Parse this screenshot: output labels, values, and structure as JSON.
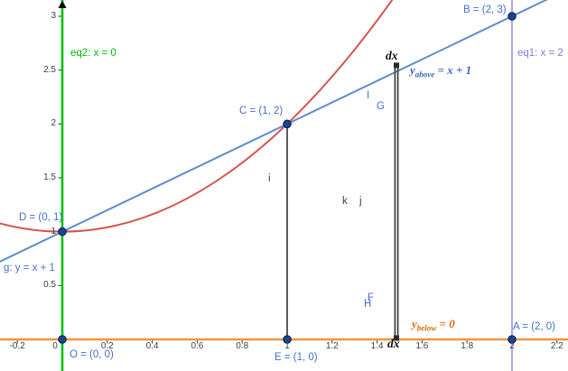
{
  "chart_data": {
    "type": "line",
    "title": "",
    "xlabel": "",
    "ylabel": "",
    "grid": false,
    "x_axis": {
      "range": [
        -0.28,
        2.25
      ],
      "ticks": [
        -0.2,
        0,
        0.2,
        0.4,
        0.6,
        0.8,
        1,
        1.2,
        1.4,
        1.6,
        1.8,
        2,
        2.2
      ]
    },
    "y_axis": {
      "range": [
        -0.29,
        3.15
      ],
      "ticks": [
        0.5,
        1,
        1.5,
        2,
        2.5,
        3
      ]
    },
    "series": [
      {
        "id": "g",
        "name": "g: y = x + 1",
        "kind": "linear",
        "m": 1,
        "b": 1,
        "color": "#5f8dc9",
        "width": 2
      },
      {
        "id": "f",
        "name": "parabola (unlabeled)",
        "kind": "parabola",
        "a": 1,
        "bq": 0,
        "c": 1,
        "color": "#d2564f",
        "width": 2
      },
      {
        "id": "eq2",
        "name": "eq2: x = 0",
        "kind": "vline",
        "x": 0,
        "color": "#00c306",
        "width": 2.6
      },
      {
        "id": "eq1",
        "name": "eq1: x = 2",
        "kind": "vline",
        "x": 2,
        "color": "#8c82e4",
        "width": 1.4
      },
      {
        "id": "ybelow",
        "name": "y_below = 0",
        "kind": "hline",
        "y": 0,
        "color": "#f7943c",
        "width": 2.4
      }
    ],
    "points": [
      {
        "id": "B",
        "x": 2,
        "y": 3,
        "label": "B = (2, 3)"
      },
      {
        "id": "C",
        "x": 1,
        "y": 2,
        "label": "C = (1, 2)"
      },
      {
        "id": "D",
        "x": 0,
        "y": 1,
        "label": "D = (0, 1)"
      },
      {
        "id": "O",
        "x": 0,
        "y": 0,
        "label": "O = (0, 0)"
      },
      {
        "id": "E",
        "x": 1,
        "y": 0,
        "label": "E = (1, 0)"
      },
      {
        "id": "A",
        "x": 2,
        "y": 0,
        "label": "A = (2, 0)"
      }
    ],
    "point_style": {
      "fill": "#1a4494",
      "stroke": "#0d2357",
      "radius": 4.2
    },
    "segments": [
      {
        "id": "CE",
        "x": 1,
        "y1": 2,
        "y2": 0,
        "color": "#4a4a4a",
        "width": 1.8
      }
    ],
    "strip": {
      "x": 1.486,
      "y_top": 2.54,
      "y_bottom": 0,
      "color": "#3b3b3b",
      "note": "dx slice between the two vertical rules"
    },
    "axis_color": "#000000",
    "tick_color": "#333333"
  },
  "labels": {
    "B": "B = (2, 3)",
    "A": "A = (2, 0)",
    "C": "C = (1, 2)",
    "D": "D = (0, 1)",
    "O": "O = (0, 0)",
    "E": "E = (1, 0)",
    "eq1": "eq1: x = 2",
    "eq2": "eq2: x = 0",
    "g": "g: y = x + 1",
    "dx_top": "dx",
    "dx_bottom": "dx",
    "y_above": {
      "var": "y",
      "sub": "above",
      "rest": " = x + 1"
    },
    "y_below": {
      "var": "y",
      "sub": "below",
      "rest": " = 0"
    },
    "I": "I",
    "G": "G",
    "i": "i",
    "k": "k",
    "j": "j",
    "F": "F",
    "H": "H"
  }
}
